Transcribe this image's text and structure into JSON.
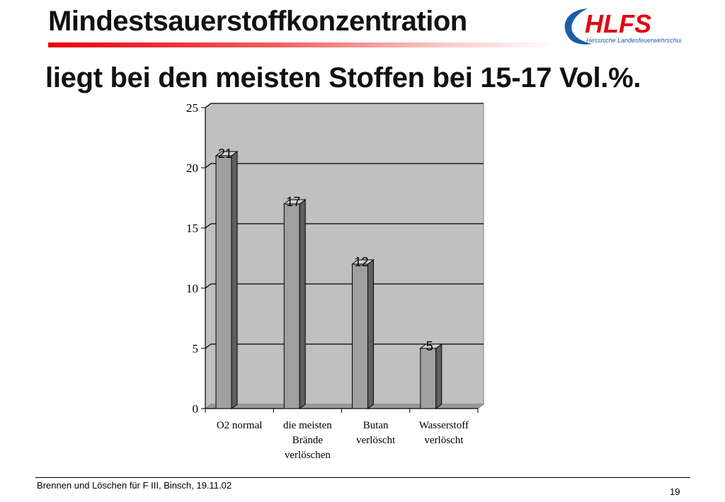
{
  "slide": {
    "title": "Mindestsauerstoffkonzentration",
    "subtitle": "liegt bei den meisten Stoffen bei 15-17 Vol.%."
  },
  "logo": {
    "text": "HLFS",
    "tagline": "Hessische Landesfeuerwehrschule",
    "color_red": "#e30613",
    "color_blue": "#1a5ea8"
  },
  "chart_data": {
    "type": "bar",
    "categories": [
      [
        "O2 normal"
      ],
      [
        "die meisten",
        "Brände",
        "verlöschen"
      ],
      [
        "Butan",
        "verlöscht"
      ],
      [
        "Wasserstoff",
        "verlöscht"
      ]
    ],
    "values": [
      21,
      17,
      12,
      5
    ],
    "data_labels": [
      "21",
      "17",
      "12",
      "5"
    ],
    "ylim": [
      0,
      25
    ],
    "yticks": [
      0,
      5,
      10,
      15,
      20,
      25
    ],
    "ytick_labels": [
      "0",
      "5",
      "10",
      "15",
      "20",
      "25"
    ],
    "grid": true,
    "three_d": true,
    "colors": {
      "plot_bg": "#c0c0c0",
      "bar_front": "#a0a0a0",
      "bar_side": "#5f5f5f",
      "bar_top": "#d2d2d2"
    }
  },
  "footer": {
    "text": "Brennen und Löschen für F III, Binsch,  19.11.02",
    "page_number": "19"
  }
}
